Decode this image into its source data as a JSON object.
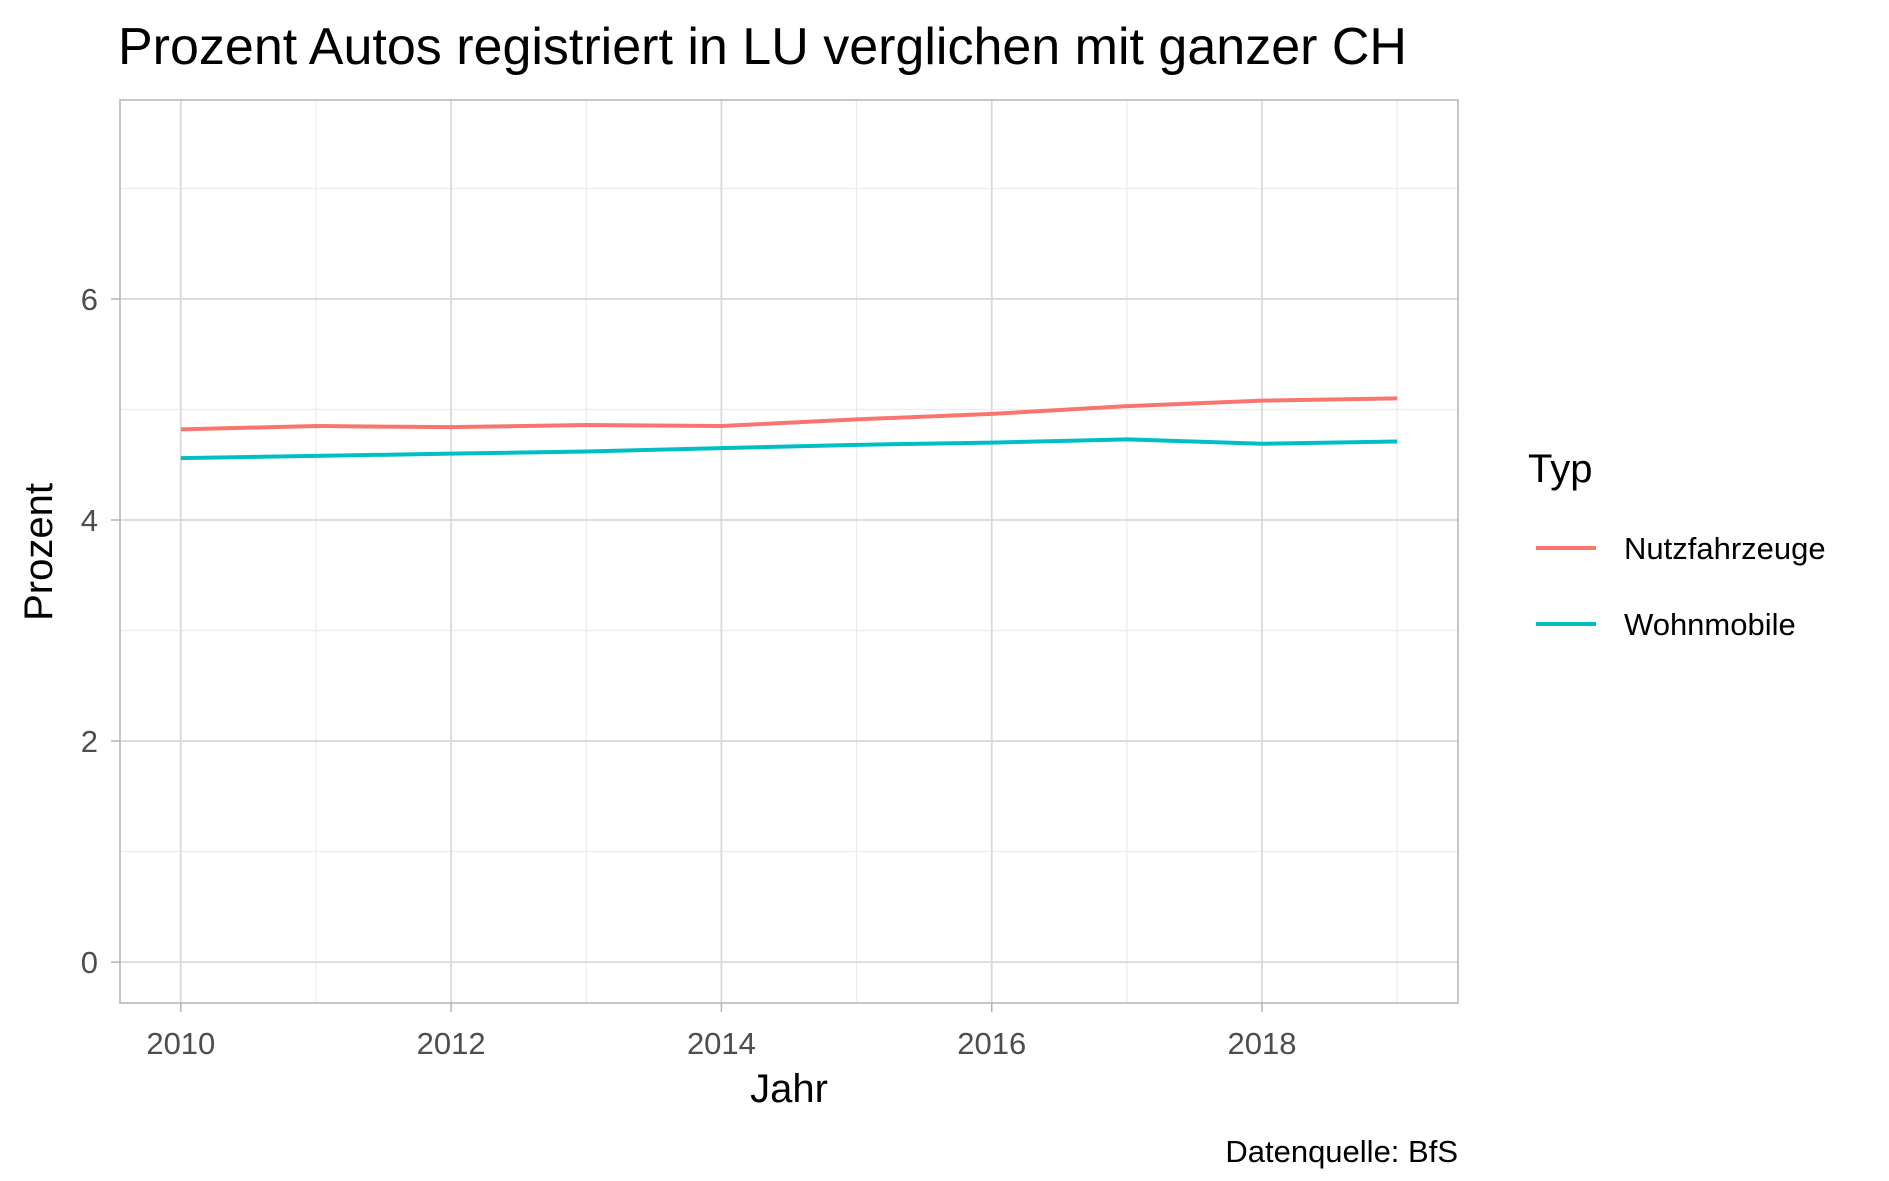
{
  "chart_data": {
    "type": "line",
    "title": "Prozent Autos registriert in LU verglichen mit ganzer CH",
    "xlabel": "Jahr",
    "ylabel": "Prozent",
    "caption": "Datenquelle: BfS",
    "x": [
      2010,
      2011,
      2012,
      2013,
      2014,
      2015,
      2016,
      2017,
      2018,
      2019
    ],
    "xticks": [
      2010,
      2012,
      2014,
      2016,
      2018
    ],
    "yticks": [
      0,
      2,
      4,
      6
    ],
    "xlim": [
      2009.55,
      2019.45
    ],
    "ylim": [
      -0.37,
      7.8
    ],
    "grid": true,
    "legend": {
      "title": "Typ",
      "position": "right"
    },
    "series": [
      {
        "name": "Nutzfahrzeuge",
        "color": "#F8766D",
        "values": [
          4.82,
          4.85,
          4.84,
          4.86,
          4.85,
          4.91,
          4.96,
          5.03,
          5.08,
          5.1
        ]
      },
      {
        "name": "Wohnmobile",
        "color": "#00BFC4",
        "values": [
          4.56,
          4.58,
          4.6,
          4.62,
          4.65,
          4.68,
          4.7,
          4.73,
          4.69,
          4.71
        ]
      }
    ]
  }
}
